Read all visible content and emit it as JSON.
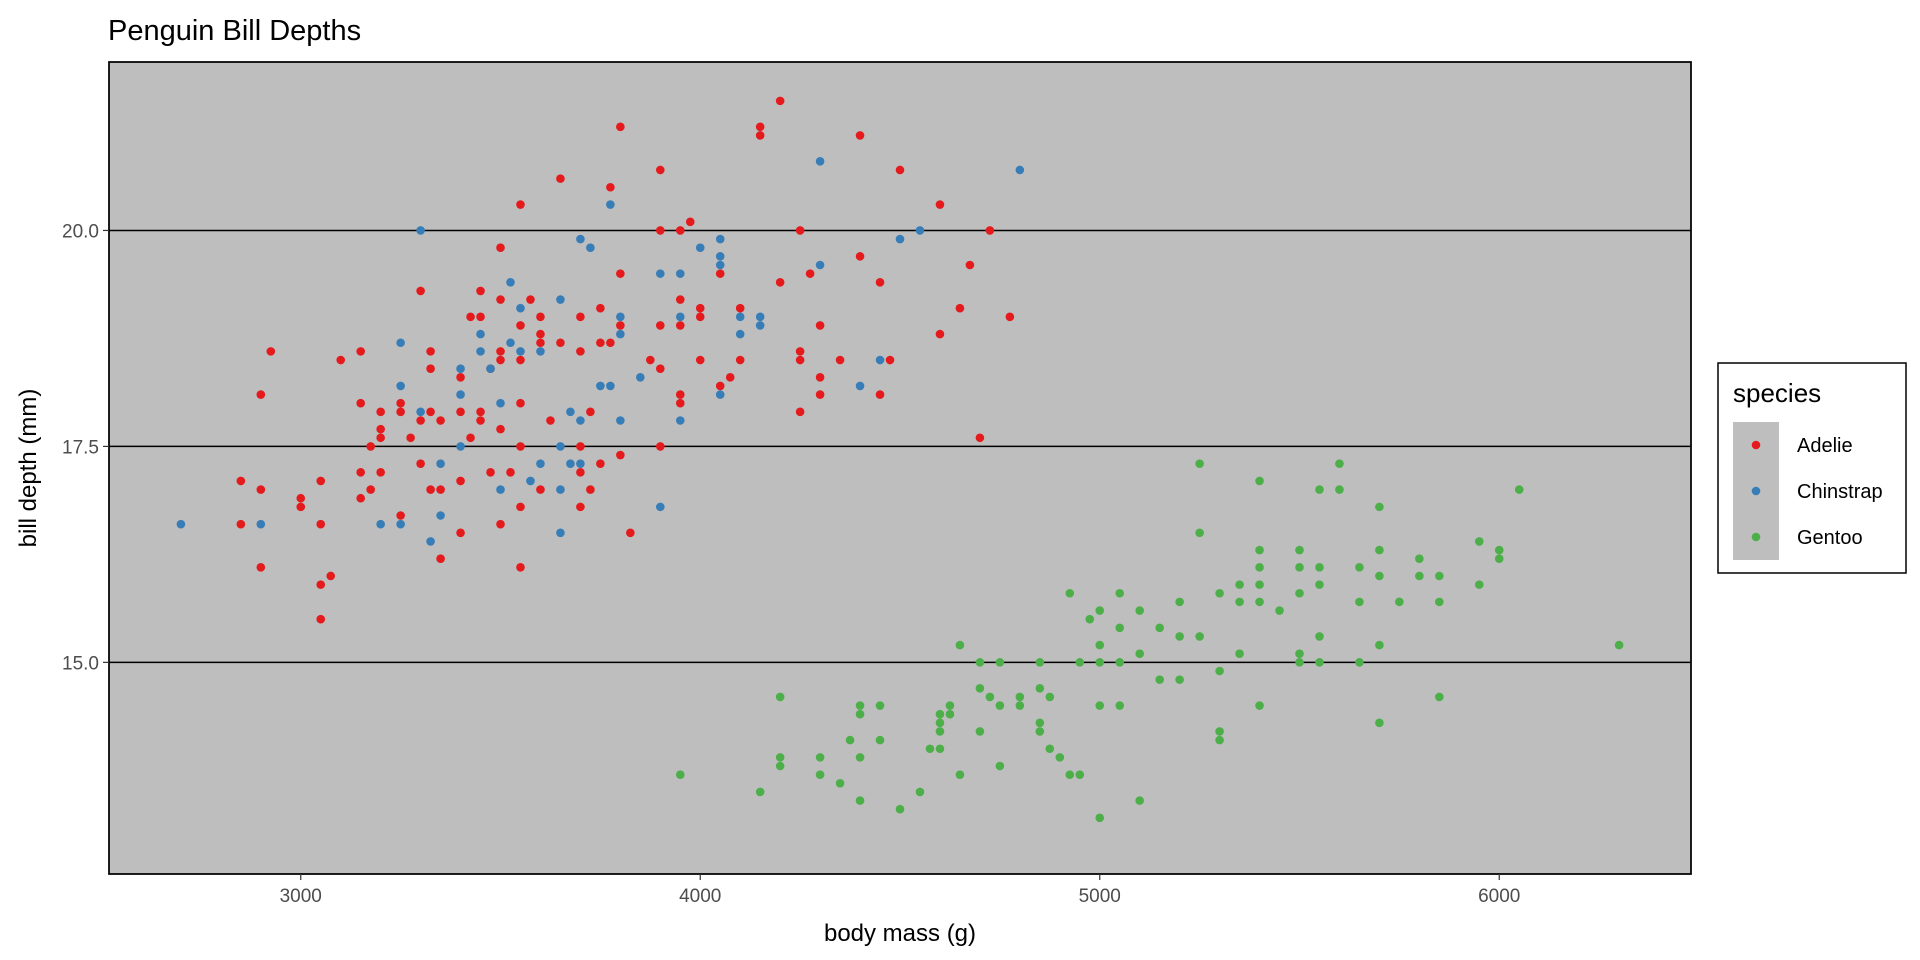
{
  "chart_data": {
    "type": "scatter",
    "title": "Penguin Bill Depths",
    "xlabel": "body mass (g)",
    "ylabel": "bill depth (mm)",
    "xlim": [
      2520,
      6480
    ],
    "ylim": [
      12.55,
      21.95
    ],
    "x_ticks": [
      3000,
      4000,
      5000,
      6000
    ],
    "x_tick_labels": [
      "3000",
      "4000",
      "5000",
      "6000"
    ],
    "y_ticks": [
      15.0,
      17.5,
      20.0
    ],
    "y_tick_labels": [
      "15.0",
      "17.5",
      "20.0"
    ],
    "grid": "horizontal major lines only",
    "panel_background": "#bebebe",
    "legend": {
      "title": "species",
      "placement": "right"
    },
    "series": [
      {
        "name": "Adelie",
        "color": "#e41a1c",
        "points": [
          [
            2850,
            17.1
          ],
          [
            2850,
            16.6
          ],
          [
            2900,
            18.1
          ],
          [
            2900,
            17.0
          ],
          [
            2900,
            16.1
          ],
          [
            2925,
            18.6
          ],
          [
            3000,
            16.9
          ],
          [
            3000,
            16.8
          ],
          [
            3050,
            17.1
          ],
          [
            3050,
            16.6
          ],
          [
            3050,
            15.9
          ],
          [
            3050,
            15.5
          ],
          [
            3075,
            16.0
          ],
          [
            3100,
            18.5
          ],
          [
            3150,
            18.6
          ],
          [
            3150,
            18.0
          ],
          [
            3150,
            17.2
          ],
          [
            3150,
            16.9
          ],
          [
            3175,
            17.5
          ],
          [
            3175,
            17.0
          ],
          [
            3200,
            17.9
          ],
          [
            3200,
            17.7
          ],
          [
            3200,
            17.6
          ],
          [
            3200,
            17.2
          ],
          [
            3250,
            18.0
          ],
          [
            3250,
            17.9
          ],
          [
            3250,
            16.7
          ],
          [
            3275,
            17.6
          ],
          [
            3300,
            19.3
          ],
          [
            3300,
            17.8
          ],
          [
            3300,
            17.3
          ],
          [
            3325,
            18.6
          ],
          [
            3325,
            18.4
          ],
          [
            3325,
            17.9
          ],
          [
            3325,
            17.0
          ],
          [
            3350,
            17.8
          ],
          [
            3350,
            17.0
          ],
          [
            3350,
            16.2
          ],
          [
            3400,
            18.3
          ],
          [
            3400,
            17.9
          ],
          [
            3400,
            17.1
          ],
          [
            3400,
            16.5
          ],
          [
            3425,
            19.0
          ],
          [
            3425,
            17.6
          ],
          [
            3450,
            19.3
          ],
          [
            3450,
            19.0
          ],
          [
            3450,
            17.9
          ],
          [
            3450,
            17.8
          ],
          [
            3475,
            17.2
          ],
          [
            3475,
            18.4
          ],
          [
            3500,
            19.8
          ],
          [
            3500,
            19.2
          ],
          [
            3500,
            18.6
          ],
          [
            3500,
            18.5
          ],
          [
            3500,
            17.7
          ],
          [
            3500,
            16.6
          ],
          [
            3525,
            17.2
          ],
          [
            3550,
            20.3
          ],
          [
            3550,
            18.9
          ],
          [
            3550,
            18.5
          ],
          [
            3550,
            18.0
          ],
          [
            3550,
            17.5
          ],
          [
            3550,
            16.8
          ],
          [
            3550,
            16.1
          ],
          [
            3575,
            19.2
          ],
          [
            3600,
            19.0
          ],
          [
            3600,
            18.8
          ],
          [
            3600,
            18.7
          ],
          [
            3600,
            17.0
          ],
          [
            3625,
            17.8
          ],
          [
            3650,
            20.6
          ],
          [
            3650,
            18.7
          ],
          [
            3700,
            19.0
          ],
          [
            3700,
            18.6
          ],
          [
            3700,
            17.5
          ],
          [
            3700,
            17.2
          ],
          [
            3700,
            16.8
          ],
          [
            3725,
            17.9
          ],
          [
            3725,
            17.0
          ],
          [
            3750,
            19.1
          ],
          [
            3750,
            18.7
          ],
          [
            3750,
            17.3
          ],
          [
            3775,
            20.5
          ],
          [
            3775,
            18.7
          ],
          [
            3800,
            21.2
          ],
          [
            3800,
            19.5
          ],
          [
            3800,
            18.9
          ],
          [
            3800,
            17.4
          ],
          [
            3825,
            16.5
          ],
          [
            3875,
            18.5
          ],
          [
            3900,
            20.7
          ],
          [
            3900,
            20.0
          ],
          [
            3900,
            18.9
          ],
          [
            3900,
            18.4
          ],
          [
            3900,
            17.5
          ],
          [
            3950,
            20.0
          ],
          [
            3950,
            19.2
          ],
          [
            3950,
            18.9
          ],
          [
            3950,
            18.1
          ],
          [
            3950,
            18.0
          ],
          [
            3975,
            20.1
          ],
          [
            4000,
            19.1
          ],
          [
            4000,
            19.0
          ],
          [
            4000,
            18.5
          ],
          [
            4050,
            19.5
          ],
          [
            4050,
            18.2
          ],
          [
            4075,
            18.3
          ],
          [
            4100,
            19.1
          ],
          [
            4100,
            18.5
          ],
          [
            4150,
            21.2
          ],
          [
            4150,
            21.1
          ],
          [
            4200,
            21.5
          ],
          [
            4200,
            19.4
          ],
          [
            4250,
            20.0
          ],
          [
            4250,
            18.6
          ],
          [
            4250,
            18.5
          ],
          [
            4250,
            17.9
          ],
          [
            4275,
            19.5
          ],
          [
            4300,
            18.9
          ],
          [
            4300,
            18.3
          ],
          [
            4300,
            18.1
          ],
          [
            4350,
            18.5
          ],
          [
            4400,
            21.1
          ],
          [
            4400,
            19.7
          ],
          [
            4450,
            19.4
          ],
          [
            4450,
            18.1
          ],
          [
            4475,
            18.5
          ],
          [
            4500,
            20.7
          ],
          [
            4600,
            20.3
          ],
          [
            4600,
            18.8
          ],
          [
            4650,
            19.1
          ],
          [
            4675,
            19.6
          ],
          [
            4700,
            17.6
          ],
          [
            4725,
            20.0
          ],
          [
            4775,
            19.0
          ]
        ]
      },
      {
        "name": "Chinstrap",
        "color": "#377eb8",
        "points": [
          [
            2700,
            16.6
          ],
          [
            2900,
            16.6
          ],
          [
            3200,
            16.6
          ],
          [
            3250,
            18.7
          ],
          [
            3250,
            18.2
          ],
          [
            3250,
            16.6
          ],
          [
            3300,
            20.0
          ],
          [
            3300,
            17.9
          ],
          [
            3325,
            16.4
          ],
          [
            3350,
            17.3
          ],
          [
            3350,
            16.7
          ],
          [
            3400,
            18.4
          ],
          [
            3400,
            18.1
          ],
          [
            3400,
            17.5
          ],
          [
            3450,
            18.8
          ],
          [
            3450,
            18.6
          ],
          [
            3475,
            18.4
          ],
          [
            3500,
            18.0
          ],
          [
            3500,
            17.0
          ],
          [
            3525,
            19.4
          ],
          [
            3525,
            18.7
          ],
          [
            3550,
            19.1
          ],
          [
            3550,
            18.6
          ],
          [
            3575,
            17.1
          ],
          [
            3600,
            18.6
          ],
          [
            3600,
            17.3
          ],
          [
            3650,
            19.2
          ],
          [
            3650,
            17.5
          ],
          [
            3650,
            17.0
          ],
          [
            3650,
            16.5
          ],
          [
            3675,
            17.9
          ],
          [
            3675,
            17.3
          ],
          [
            3700,
            19.9
          ],
          [
            3700,
            17.8
          ],
          [
            3700,
            17.3
          ],
          [
            3725,
            19.8
          ],
          [
            3750,
            18.2
          ],
          [
            3775,
            20.3
          ],
          [
            3775,
            18.2
          ],
          [
            3800,
            19.0
          ],
          [
            3800,
            18.8
          ],
          [
            3800,
            17.8
          ],
          [
            3850,
            18.3
          ],
          [
            3900,
            19.5
          ],
          [
            3900,
            16.8
          ],
          [
            3950,
            19.5
          ],
          [
            3950,
            19.0
          ],
          [
            3950,
            17.8
          ],
          [
            4000,
            19.8
          ],
          [
            4050,
            19.9
          ],
          [
            4050,
            19.7
          ],
          [
            4050,
            19.6
          ],
          [
            4050,
            18.1
          ],
          [
            4100,
            19.0
          ],
          [
            4100,
            18.8
          ],
          [
            4150,
            19.0
          ],
          [
            4150,
            18.9
          ],
          [
            4300,
            20.8
          ],
          [
            4300,
            19.6
          ],
          [
            4400,
            18.2
          ],
          [
            4450,
            18.5
          ],
          [
            4500,
            19.9
          ],
          [
            4550,
            20.0
          ],
          [
            4800,
            20.7
          ]
        ]
      },
      {
        "name": "Gentoo",
        "color": "#4daf4a",
        "points": [
          [
            3950,
            13.7
          ],
          [
            4150,
            13.5
          ],
          [
            4200,
            14.6
          ],
          [
            4200,
            13.9
          ],
          [
            4200,
            13.8
          ],
          [
            4300,
            13.9
          ],
          [
            4300,
            13.7
          ],
          [
            4350,
            13.6
          ],
          [
            4375,
            14.1
          ],
          [
            4400,
            14.5
          ],
          [
            4400,
            14.4
          ],
          [
            4400,
            13.9
          ],
          [
            4400,
            13.4
          ],
          [
            4450,
            14.5
          ],
          [
            4450,
            14.1
          ],
          [
            4500,
            13.3
          ],
          [
            4550,
            13.5
          ],
          [
            4575,
            14.0
          ],
          [
            4600,
            14.4
          ],
          [
            4600,
            14.3
          ],
          [
            4600,
            14.2
          ],
          [
            4600,
            14.0
          ],
          [
            4625,
            14.5
          ],
          [
            4625,
            14.4
          ],
          [
            4650,
            15.2
          ],
          [
            4650,
            13.7
          ],
          [
            4700,
            15.0
          ],
          [
            4700,
            14.7
          ],
          [
            4700,
            14.2
          ],
          [
            4725,
            14.6
          ],
          [
            4750,
            15.0
          ],
          [
            4750,
            14.5
          ],
          [
            4750,
            13.8
          ],
          [
            4800,
            14.6
          ],
          [
            4800,
            14.5
          ],
          [
            4850,
            15.0
          ],
          [
            4850,
            14.7
          ],
          [
            4850,
            14.3
          ],
          [
            4850,
            14.2
          ],
          [
            4875,
            14.6
          ],
          [
            4875,
            14.0
          ],
          [
            4900,
            13.9
          ],
          [
            4925,
            15.8
          ],
          [
            4925,
            13.7
          ],
          [
            4950,
            15.0
          ],
          [
            4950,
            13.7
          ],
          [
            4975,
            15.5
          ],
          [
            5000,
            15.6
          ],
          [
            5000,
            15.2
          ],
          [
            5000,
            15.0
          ],
          [
            5000,
            14.5
          ],
          [
            5000,
            13.2
          ],
          [
            5050,
            15.8
          ],
          [
            5050,
            15.4
          ],
          [
            5050,
            15.0
          ],
          [
            5050,
            14.5
          ],
          [
            5100,
            15.6
          ],
          [
            5100,
            15.1
          ],
          [
            5100,
            13.4
          ],
          [
            5150,
            15.4
          ],
          [
            5150,
            14.8
          ],
          [
            5200,
            15.7
          ],
          [
            5200,
            15.3
          ],
          [
            5200,
            14.8
          ],
          [
            5250,
            17.3
          ],
          [
            5250,
            16.5
          ],
          [
            5250,
            15.3
          ],
          [
            5300,
            15.8
          ],
          [
            5300,
            14.9
          ],
          [
            5300,
            14.2
          ],
          [
            5300,
            14.1
          ],
          [
            5350,
            15.9
          ],
          [
            5350,
            15.7
          ],
          [
            5350,
            15.1
          ],
          [
            5400,
            17.1
          ],
          [
            5400,
            16.3
          ],
          [
            5400,
            16.1
          ],
          [
            5400,
            15.9
          ],
          [
            5400,
            15.7
          ],
          [
            5400,
            14.5
          ],
          [
            5450,
            15.6
          ],
          [
            5500,
            16.3
          ],
          [
            5500,
            16.1
          ],
          [
            5500,
            15.8
          ],
          [
            5500,
            15.1
          ],
          [
            5500,
            15.0
          ],
          [
            5550,
            17.0
          ],
          [
            5550,
            16.1
          ],
          [
            5550,
            15.9
          ],
          [
            5550,
            15.3
          ],
          [
            5550,
            15.0
          ],
          [
            5600,
            17.3
          ],
          [
            5600,
            17.0
          ],
          [
            5650,
            16.1
          ],
          [
            5650,
            15.7
          ],
          [
            5650,
            15.0
          ],
          [
            5700,
            16.8
          ],
          [
            5700,
            16.3
          ],
          [
            5700,
            16.0
          ],
          [
            5700,
            15.2
          ],
          [
            5700,
            14.3
          ],
          [
            5750,
            15.7
          ],
          [
            5800,
            16.2
          ],
          [
            5800,
            16.0
          ],
          [
            5850,
            16.0
          ],
          [
            5850,
            15.7
          ],
          [
            5850,
            14.6
          ],
          [
            5950,
            16.4
          ],
          [
            5950,
            15.9
          ],
          [
            6000,
            16.3
          ],
          [
            6000,
            16.2
          ],
          [
            6050,
            17.0
          ],
          [
            6300,
            15.2
          ]
        ]
      }
    ]
  }
}
